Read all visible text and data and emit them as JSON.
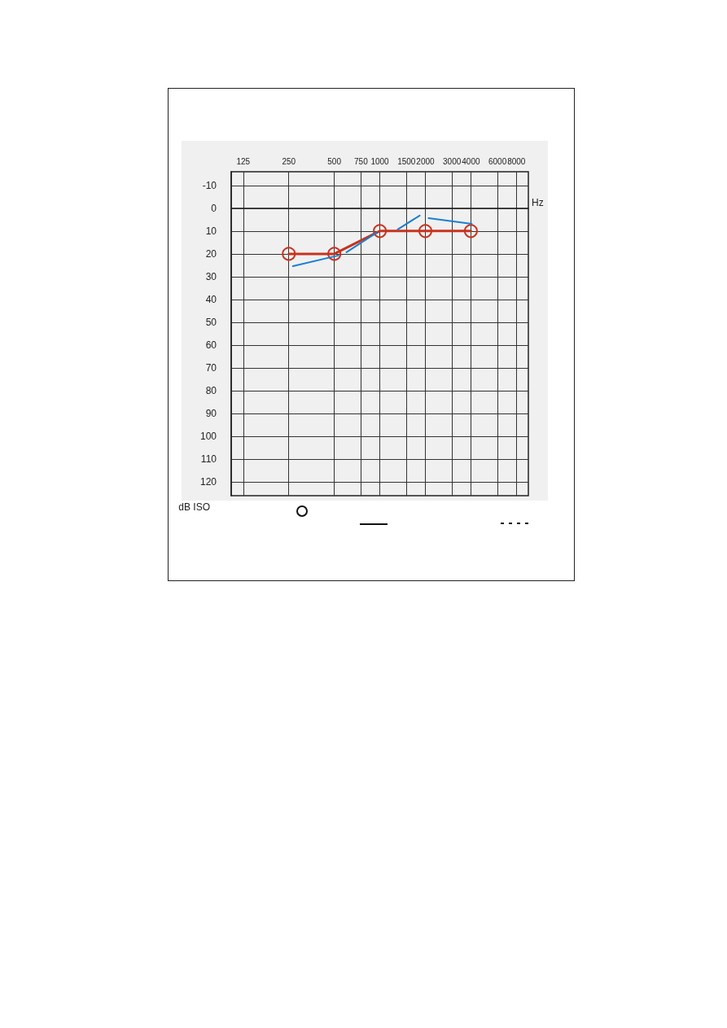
{
  "chart_data": {
    "type": "line",
    "xlabel": "Hz",
    "ylabel": "dB ISO",
    "xlim": [
      104,
      9600
    ],
    "xticks": [
      125,
      250,
      500,
      750,
      1000,
      1500,
      2000,
      3000,
      4000,
      6000,
      8000
    ],
    "ylim": [
      126,
      -16
    ],
    "yticks": [
      -10,
      0,
      10,
      20,
      30,
      40,
      50,
      60,
      70,
      80,
      90,
      100,
      110,
      120
    ],
    "log": "x",
    "grid": true,
    "series": [
      {
        "color": "#c8321e",
        "marker": "circle",
        "line_style": "solid",
        "x": [
          250,
          500,
          1000,
          2000,
          4000
        ],
        "values": [
          20,
          20,
          10,
          10,
          10
        ]
      },
      {
        "color": "#1a7fd0",
        "marker": "none",
        "line_style": "solid",
        "x": [
          266,
          532,
          560,
          602,
          952,
          1100,
          1313,
          1834,
          1950,
          2100,
          4050
        ],
        "values": [
          25.4,
          20.7,
          null,
          19.3,
          10.7,
          null,
          9.3,
          3.2,
          null,
          4.3,
          6.8
        ]
      }
    ]
  }
}
